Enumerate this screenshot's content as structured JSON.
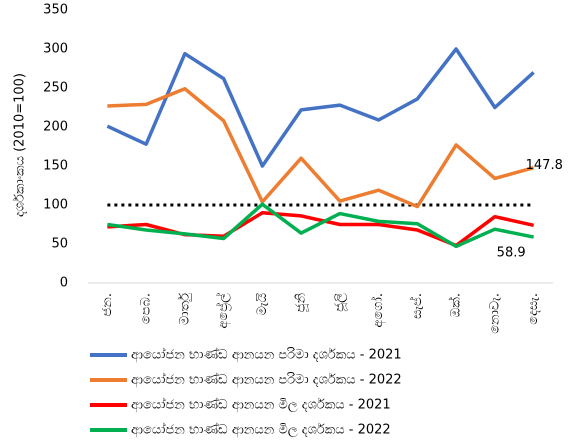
{
  "chart_data": {
    "type": "line",
    "y_label": "දර්ශකාංකය (2010=100)",
    "categories": [
      "ජන.",
      "පෙබ.",
      "මාර්තු",
      "අප්‍රේල්",
      "මැයි",
      "ජූනි",
      "ජූලි",
      "අගෝ.",
      "සැප්.",
      "ඔක්.",
      "නොවැ.",
      "දෙසැ."
    ],
    "series": [
      {
        "name": "ආයෝජන භාණ්ඩ ආනයන පරිමා දර්ශකය - 2021",
        "color": "#4472c4",
        "values": [
          201,
          178,
          294,
          262,
          150,
          222,
          228,
          209,
          236,
          300,
          225,
          270
        ]
      },
      {
        "name": "ආයෝජන භාණ්ඩ ආනයන පරිමා දර්ශකය - 2022",
        "color": "#ed7d31",
        "values": [
          227,
          229,
          249,
          208,
          104,
          160,
          105,
          119,
          98,
          177,
          134,
          147.8
        ],
        "labeled_points": [
          11
        ]
      },
      {
        "name": "ආයෝජන භාණ්ඩ ආනයන මිල දර්ශකය - 2021",
        "color": "#ff0000",
        "values": [
          72,
          75,
          62,
          60,
          90,
          86,
          75,
          75,
          68,
          48,
          85,
          74
        ]
      },
      {
        "name": "ආයෝජන භාණ්ඩ ආනයන මිල දර්ශකය - 2022",
        "color": "#00b050",
        "values": [
          75,
          68,
          63,
          57,
          101,
          64,
          89,
          79,
          76,
          47,
          69,
          58.9
        ],
        "labeled_points": [
          11
        ]
      }
    ],
    "reference_line": 100,
    "ylim": [
      0,
      350
    ],
    "yticks": [
      0,
      50,
      100,
      150,
      200,
      250,
      300,
      350
    ],
    "grid": false,
    "legend": "bottom"
  }
}
